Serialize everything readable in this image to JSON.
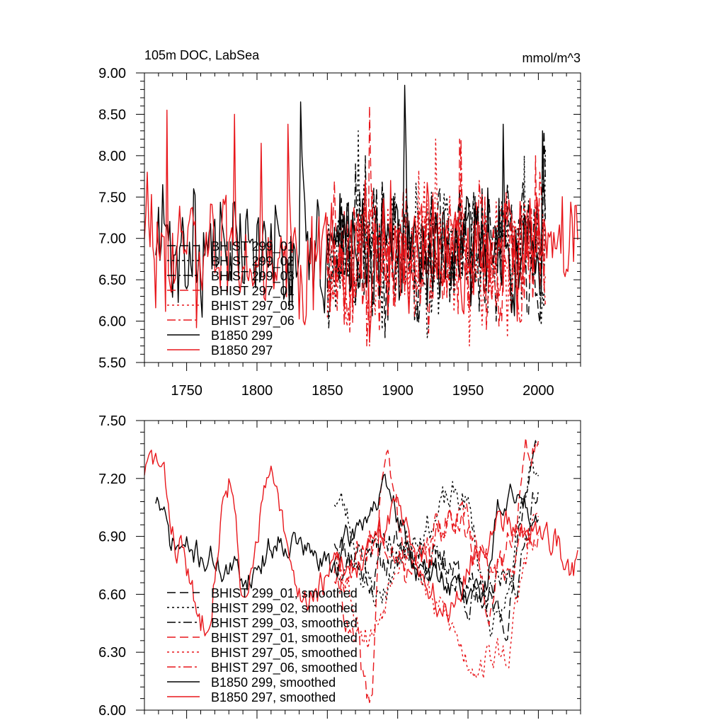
{
  "chart_data": [
    {
      "type": "line",
      "title": "105m DOC, LabSea",
      "units": "mmol/m^3",
      "xlim": [
        1720,
        2030
      ],
      "ylim": [
        5.5,
        9.0
      ],
      "xticks": [
        1750,
        1800,
        1850,
        1900,
        1950,
        2000
      ],
      "xtick_labels": [
        "1750",
        "1800",
        "1850",
        "1900",
        "1950",
        "2000"
      ],
      "yticks": [
        5.5,
        6.0,
        6.5,
        7.0,
        7.5,
        8.0,
        8.5,
        9.0
      ],
      "ytick_labels": [
        "5.50",
        "6.00",
        "6.50",
        "7.00",
        "7.50",
        "8.00",
        "8.50",
        "9.00"
      ],
      "legend_position": "lower-left",
      "series": [
        {
          "name": "BHIST 299_01",
          "color": "#000000",
          "dash": "dash",
          "x_range": [
            1850,
            2005
          ],
          "center": 6.85,
          "noise": 0.36,
          "seed": 11,
          "spikes": [
            [
              1870,
              7.9
            ],
            [
              1893,
              6.0
            ],
            [
              1930,
              7.6
            ],
            [
              1970,
              6.0
            ],
            [
              2004,
              8.3
            ]
          ]
        },
        {
          "name": "BHIST 299_02",
          "color": "#000000",
          "dash": "dot",
          "x_range": [
            1850,
            2005
          ],
          "center": 6.85,
          "noise": 0.36,
          "seed": 23,
          "spikes": [
            [
              1872,
              8.3
            ],
            [
              1889,
              5.9
            ],
            [
              1935,
              7.5
            ],
            [
              1990,
              8.0
            ],
            [
              2005,
              8.1
            ]
          ]
        },
        {
          "name": "BHIST 299_03",
          "color": "#000000",
          "dash": "dashdot",
          "x_range": [
            1850,
            2005
          ],
          "center": 6.85,
          "noise": 0.36,
          "seed": 37,
          "spikes": [
            [
              1877,
              8.0
            ],
            [
              1912,
              6.0
            ],
            [
              1960,
              7.6
            ],
            [
              2003,
              8.1
            ]
          ]
        },
        {
          "name": "BHIST 297_01",
          "color": "#e8161b",
          "dash": "dash",
          "x_range": [
            1850,
            2005
          ],
          "center": 6.8,
          "noise": 0.36,
          "seed": 41,
          "spikes": [
            [
              1880,
              8.6
            ],
            [
              1944,
              8.2
            ],
            [
              1963,
              5.9
            ],
            [
              1998,
              8.0
            ]
          ]
        },
        {
          "name": "BHIST 297_05",
          "color": "#e8161b",
          "dash": "dot",
          "x_range": [
            1850,
            2005
          ],
          "center": 6.8,
          "noise": 0.36,
          "seed": 53,
          "spikes": [
            [
              1880,
              5.7
            ],
            [
              1927,
              8.2
            ],
            [
              1951,
              5.7
            ],
            [
              1978,
              5.8
            ]
          ]
        },
        {
          "name": "BHIST 297_06",
          "color": "#e8161b",
          "dash": "dashdot",
          "x_range": [
            1850,
            2005
          ],
          "center": 6.8,
          "noise": 0.36,
          "seed": 67,
          "spikes": [
            [
              1878,
              5.7
            ],
            [
              1945,
              8.2
            ],
            [
              1958,
              7.7
            ],
            [
              2001,
              7.8
            ]
          ]
        },
        {
          "name": "B1850 299",
          "color": "#000000",
          "dash": "solid",
          "x_range": [
            1728,
            2005
          ],
          "center": 6.85,
          "noise": 0.32,
          "seed": 71,
          "spikes": [
            [
              1733,
              7.65
            ],
            [
              1755,
              7.6
            ],
            [
              1813,
              7.4
            ],
            [
              1831,
              8.65
            ],
            [
              1848,
              6.1
            ],
            [
              1905,
              8.85
            ],
            [
              1975,
              8.38
            ],
            [
              2003,
              8.3
            ]
          ]
        },
        {
          "name": "B1850 297",
          "color": "#e8161b",
          "dash": "solid",
          "x_range": [
            1720,
            2028
          ],
          "center": 6.85,
          "noise": 0.32,
          "seed": 83,
          "spikes": [
            [
              1722,
              7.8
            ],
            [
              1736,
              8.55
            ],
            [
              1757,
              5.92
            ],
            [
              1784,
              8.5
            ],
            [
              1803,
              8.15
            ],
            [
              1822,
              8.38
            ],
            [
              1833,
              6.0
            ],
            [
              1880,
              5.75
            ],
            [
              1895,
              7.7
            ],
            [
              1985,
              6.0
            ],
            [
              2027,
              7.4
            ]
          ]
        }
      ]
    },
    {
      "type": "line",
      "title": "",
      "xlim": [
        1720,
        2030
      ],
      "ylim": [
        6.0,
        7.5
      ],
      "xticks": [
        1750,
        1800,
        1850,
        1900,
        1950,
        2000
      ],
      "yticks": [
        6.0,
        6.3,
        6.6,
        6.9,
        7.2,
        7.5
      ],
      "ytick_labels": [
        "6.00",
        "6.30",
        "6.60",
        "6.90",
        "7.20",
        "7.50"
      ],
      "legend_position": "lower-left",
      "series": [
        {
          "name": "BHIST 299_01, smoothed",
          "color": "#000000",
          "dash": "dash",
          "x_range": [
            1855,
            2000
          ],
          "center": 6.78,
          "amp": 0.16,
          "seed": 11,
          "anchors": [
            [
              1855,
              6.9
            ],
            [
              1880,
              6.7
            ],
            [
              1905,
              6.85
            ],
            [
              1930,
              6.8
            ],
            [
              1955,
              6.6
            ],
            [
              1975,
              6.5
            ],
            [
              2000,
              7.4
            ]
          ]
        },
        {
          "name": "BHIST 299_02, smoothed",
          "color": "#000000",
          "dash": "dot",
          "x_range": [
            1855,
            2000
          ],
          "center": 6.8,
          "amp": 0.16,
          "seed": 23,
          "anchors": [
            [
              1855,
              7.1
            ],
            [
              1885,
              6.6
            ],
            [
              1915,
              6.95
            ],
            [
              1945,
              7.1
            ],
            [
              1970,
              6.45
            ],
            [
              2000,
              7.25
            ]
          ]
        },
        {
          "name": "BHIST 299_03, smoothed",
          "color": "#000000",
          "dash": "dashdot",
          "x_range": [
            1855,
            2000
          ],
          "center": 6.78,
          "amp": 0.16,
          "seed": 37,
          "anchors": [
            [
              1855,
              6.8
            ],
            [
              1890,
              6.85
            ],
            [
              1925,
              6.75
            ],
            [
              1960,
              6.55
            ],
            [
              1985,
              6.7
            ],
            [
              2000,
              7.2
            ]
          ]
        },
        {
          "name": "BHIST 297_01, smoothed",
          "color": "#e8161b",
          "dash": "dash",
          "x_range": [
            1855,
            2000
          ],
          "center": 6.8,
          "amp": 0.18,
          "seed": 41,
          "anchors": [
            [
              1855,
              6.75
            ],
            [
              1870,
              6.3
            ],
            [
              1880,
              6.01
            ],
            [
              1890,
              7.28
            ],
            [
              1910,
              6.7
            ],
            [
              1940,
              7.05
            ],
            [
              1965,
              6.6
            ],
            [
              2000,
              7.42
            ]
          ]
        },
        {
          "name": "BHIST 297_05, smoothed",
          "color": "#e8161b",
          "dash": "dot",
          "x_range": [
            1855,
            2000
          ],
          "center": 6.75,
          "amp": 0.16,
          "seed": 53,
          "anchors": [
            [
              1855,
              6.8
            ],
            [
              1880,
              6.4
            ],
            [
              1905,
              6.9
            ],
            [
              1930,
              6.5
            ],
            [
              1952,
              6.27
            ],
            [
              1975,
              6.28
            ],
            [
              2000,
              7.0
            ]
          ]
        },
        {
          "name": "BHIST 297_06, smoothed",
          "color": "#e8161b",
          "dash": "dashdot",
          "x_range": [
            1855,
            2000
          ],
          "center": 6.8,
          "amp": 0.16,
          "seed": 67,
          "anchors": [
            [
              1855,
              6.7
            ],
            [
              1885,
              6.9
            ],
            [
              1915,
              6.85
            ],
            [
              1945,
              6.95
            ],
            [
              1970,
              6.7
            ],
            [
              2000,
              6.95
            ]
          ]
        },
        {
          "name": "B1850 299, smoothed",
          "color": "#000000",
          "dash": "solid",
          "x_range": [
            1728,
            2000
          ],
          "center": 6.82,
          "amp": 0.14,
          "seed": 71,
          "anchors": [
            [
              1728,
              7.1
            ],
            [
              1740,
              6.85
            ],
            [
              1760,
              6.8
            ],
            [
              1790,
              6.7
            ],
            [
              1820,
              6.9
            ],
            [
              1850,
              6.75
            ],
            [
              1890,
              7.1
            ],
            [
              1920,
              6.7
            ],
            [
              1960,
              6.6
            ],
            [
              1975,
              7.1
            ],
            [
              2000,
              7.05
            ]
          ]
        },
        {
          "name": "B1850 297, smoothed",
          "color": "#e8161b",
          "dash": "solid",
          "x_range": [
            1720,
            2028
          ],
          "center": 6.8,
          "amp": 0.16,
          "seed": 83,
          "anchors": [
            [
              1720,
              7.25
            ],
            [
              1728,
              7.28
            ],
            [
              1745,
              6.85
            ],
            [
              1760,
              6.45
            ],
            [
              1782,
              7.22
            ],
            [
              1790,
              6.5
            ],
            [
              1808,
              7.18
            ],
            [
              1830,
              6.6
            ],
            [
              1880,
              6.8
            ],
            [
              1900,
              7.05
            ],
            [
              1930,
              6.55
            ],
            [
              1975,
              7.0
            ],
            [
              2010,
              6.9
            ],
            [
              2025,
              6.68
            ],
            [
              2028,
              6.84
            ]
          ]
        }
      ]
    }
  ]
}
